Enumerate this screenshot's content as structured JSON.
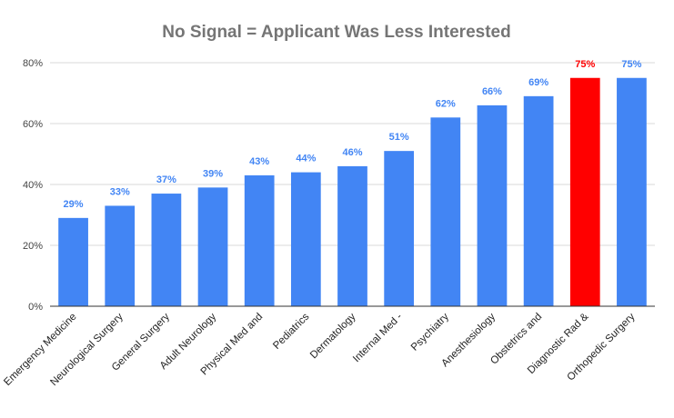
{
  "chart_data": {
    "type": "bar",
    "title": "No Signal = Applicant Was Less Interested",
    "xlabel": "",
    "ylabel": "",
    "ylim": [
      0,
      80
    ],
    "yticks": [
      0,
      20,
      40,
      60,
      80
    ],
    "ytick_labels": [
      "0%",
      "20%",
      "40%",
      "60%",
      "80%"
    ],
    "grid": true,
    "categories": [
      "Emergency Medicine",
      "Neurological Surgery",
      "General Surgery",
      "Adult Neurology",
      "Physical Med and",
      "Pediatrics",
      "Dermatology",
      "Internal Med -",
      "Psychiatry",
      "Anesthesiology",
      "Obstetrics and",
      "Diagnostic Rad &",
      "Orthopedic Surgery"
    ],
    "values": [
      29,
      33,
      37,
      39,
      43,
      44,
      46,
      51,
      62,
      66,
      69,
      75,
      75
    ],
    "data_labels": [
      "29%",
      "33%",
      "37%",
      "39%",
      "43%",
      "44%",
      "46%",
      "51%",
      "62%",
      "66%",
      "69%",
      "75%",
      "75%"
    ],
    "bar_colors": [
      "#4285f4",
      "#4285f4",
      "#4285f4",
      "#4285f4",
      "#4285f4",
      "#4285f4",
      "#4285f4",
      "#4285f4",
      "#4285f4",
      "#4285f4",
      "#4285f4",
      "#ff0000",
      "#4285f4"
    ],
    "label_colors": [
      "#4285f4",
      "#4285f4",
      "#4285f4",
      "#4285f4",
      "#4285f4",
      "#4285f4",
      "#4285f4",
      "#4285f4",
      "#4285f4",
      "#4285f4",
      "#4285f4",
      "#ff0000",
      "#4285f4"
    ]
  }
}
